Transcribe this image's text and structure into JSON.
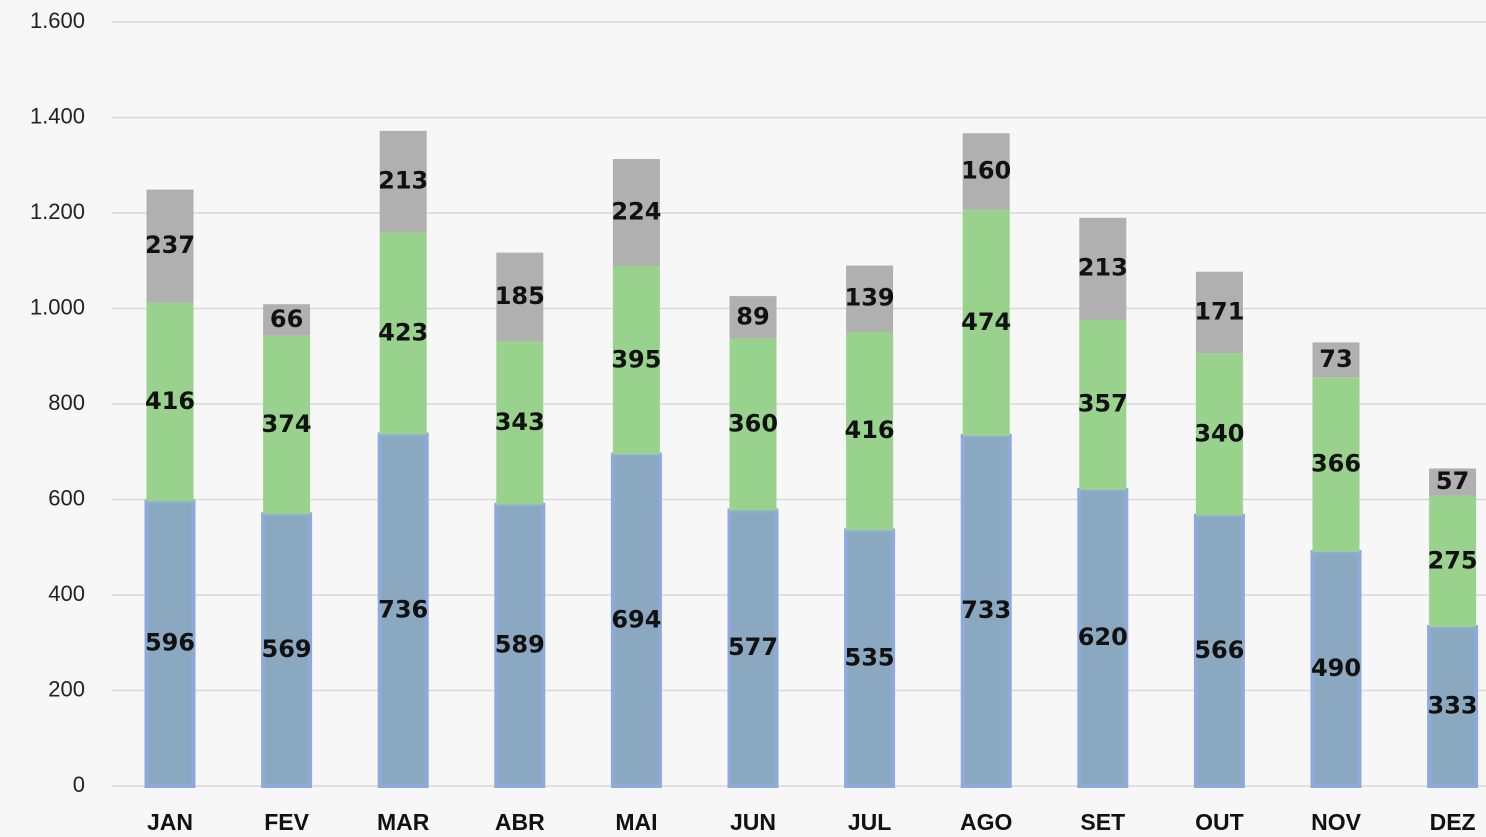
{
  "chart_data": {
    "type": "stacked_bar",
    "categories": [
      "JAN",
      "FEV",
      "MAR",
      "ABR",
      "MAI",
      "JUN",
      "JUL",
      "AGO",
      "SET",
      "OUT",
      "NOV",
      "DEZ"
    ],
    "series": [
      {
        "color": "#8aa8c0",
        "values": [
          596,
          569,
          736,
          589,
          694,
          577,
          535,
          733,
          620,
          566,
          490,
          333
        ]
      },
      {
        "color": "#98d28c",
        "values": [
          416,
          374,
          423,
          343,
          395,
          360,
          416,
          474,
          357,
          340,
          366,
          275
        ]
      },
      {
        "color": "#b0b0b0",
        "values": [
          237,
          66,
          213,
          185,
          224,
          89,
          139,
          160,
          213,
          171,
          73,
          57
        ]
      }
    ],
    "ylim": [
      0,
      1600
    ],
    "yticks": [
      0,
      200,
      400,
      600,
      800,
      {
        "value": 1000,
        "label": "1.000"
      },
      {
        "value": 1200,
        "label": "1.200"
      },
      {
        "value": 1400,
        "label": "1.400"
      },
      {
        "value": 1600,
        "label": "1.600"
      }
    ],
    "grid": true
  }
}
